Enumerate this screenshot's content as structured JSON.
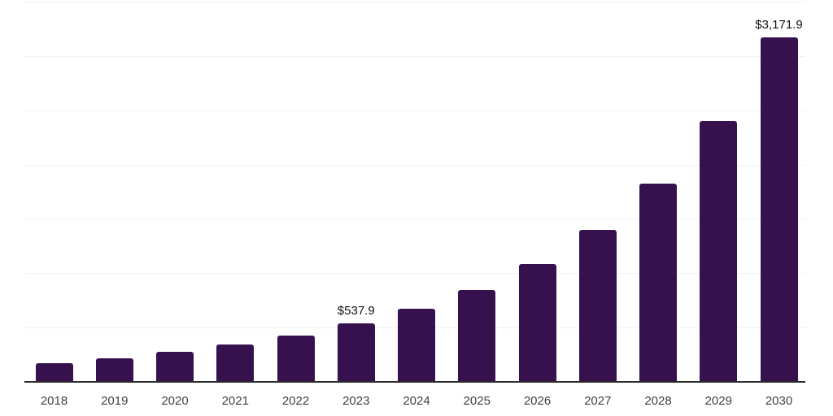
{
  "chart_data": {
    "type": "bar",
    "title": "",
    "xlabel": "",
    "ylabel": "",
    "categories": [
      "2018",
      "2019",
      "2020",
      "2021",
      "2022",
      "2023",
      "2024",
      "2025",
      "2026",
      "2027",
      "2028",
      "2029",
      "2030"
    ],
    "values": [
      173,
      216,
      273,
      342,
      425,
      537.9,
      672,
      843,
      1088,
      1400,
      1825,
      2398,
      3171.9
    ],
    "annotations": [
      {
        "category": "2023",
        "text": "$537.9"
      },
      {
        "category": "2030",
        "text": "$3,171.9"
      }
    ],
    "ylim": [
      0,
      3500
    ],
    "gridline_step": 500,
    "grid": true,
    "legend": false,
    "y_axis_labels_visible": false,
    "colors": {
      "bar": "#36114e",
      "gridline": "#f2f2f2",
      "axis": "#2b2b2b",
      "tick_label": "#3f3f3f",
      "value_label": "#101010",
      "background": "#ffffff"
    }
  }
}
